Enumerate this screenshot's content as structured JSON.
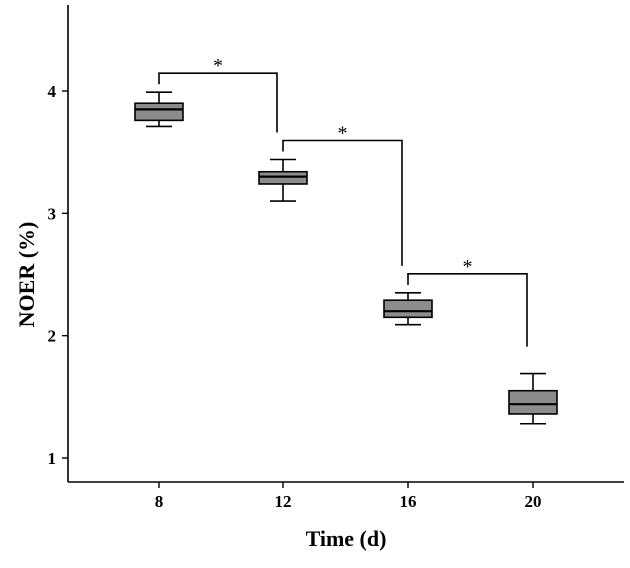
{
  "chart_data": {
    "type": "box",
    "title": "",
    "xlabel": "Time (d)",
    "ylabel": "NOER (%)",
    "categories": [
      "8",
      "12",
      "16",
      "20"
    ],
    "ylim": [
      0.8,
      4.65
    ],
    "yticks": [
      1,
      2,
      3,
      4
    ],
    "yticklabels": [
      "1",
      "2",
      "3",
      "4"
    ],
    "boxes": [
      {
        "category": "8",
        "min": 3.71,
        "q1": 3.76,
        "median": 3.85,
        "q3": 3.9,
        "max": 3.99
      },
      {
        "category": "12",
        "min": 3.1,
        "q1": 3.24,
        "median": 3.3,
        "q3": 3.34,
        "max": 3.44
      },
      {
        "category": "16",
        "min": 2.09,
        "q1": 2.15,
        "median": 2.2,
        "q3": 2.29,
        "max": 2.35
      },
      {
        "category": "20",
        "min": 1.28,
        "q1": 1.36,
        "median": 1.44,
        "q3": 1.55,
        "max": 1.69
      }
    ],
    "significance": [
      {
        "from": "8",
        "to": "12",
        "label": "*"
      },
      {
        "from": "12",
        "to": "16",
        "label": "*"
      },
      {
        "from": "16",
        "to": "20",
        "label": "*"
      }
    ],
    "grid": false,
    "legend": "none"
  }
}
